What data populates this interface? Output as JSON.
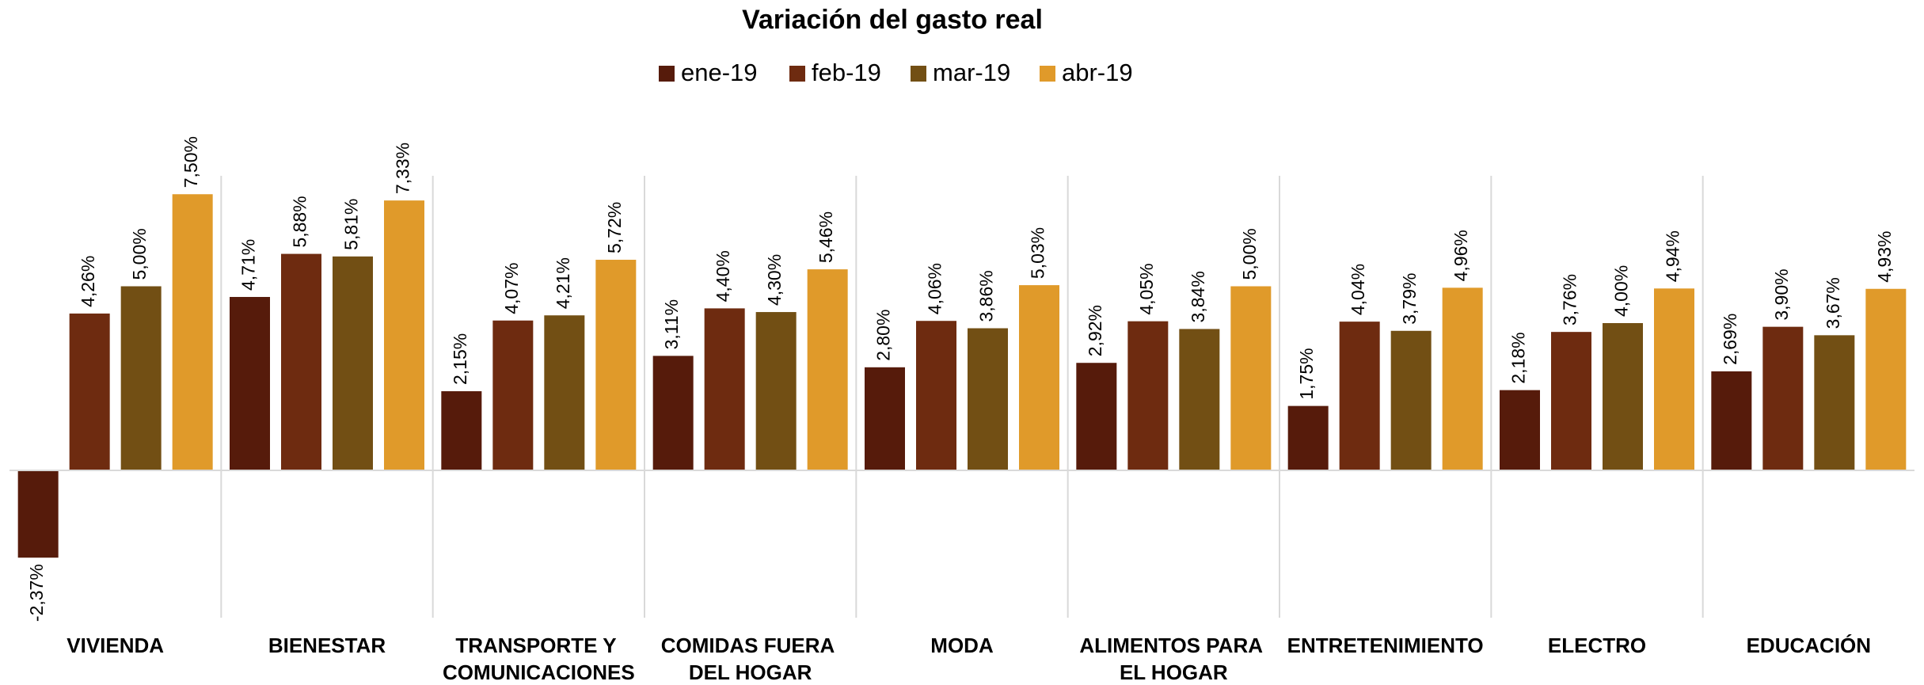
{
  "chart_data": {
    "type": "bar",
    "title": "Variación del gasto real",
    "categories": [
      "VIVIENDA",
      "BIENESTAR",
      "TRANSPORTE Y COMUNICACIONES",
      "COMIDAS FUERA DEL HOGAR",
      "MODA",
      "ALIMENTOS PARA EL HOGAR",
      "ENTRETENIMIENTO",
      "ELECTRO",
      "EDUCACIÓN"
    ],
    "series": [
      {
        "name": "ene-19",
        "color": "#561b0b",
        "values": [
          -2.37,
          4.71,
          2.15,
          3.11,
          2.8,
          2.92,
          1.75,
          2.18,
          2.69
        ],
        "value_labels": [
          "-2,37%",
          "4,71%",
          "2,15%",
          "3,11%",
          "2,80%",
          "2,92%",
          "1,75%",
          "2,18%",
          "2,69%"
        ]
      },
      {
        "name": "feb-19",
        "color": "#6e2b10",
        "values": [
          4.26,
          5.88,
          4.07,
          4.4,
          4.06,
          4.05,
          4.04,
          3.76,
          3.9
        ],
        "value_labels": [
          "4,26%",
          "5,88%",
          "4,07%",
          "4,40%",
          "4,06%",
          "4,05%",
          "4,04%",
          "3,76%",
          "3,90%"
        ]
      },
      {
        "name": "mar-19",
        "color": "#724f14",
        "values": [
          5.0,
          5.81,
          4.21,
          4.3,
          3.86,
          3.84,
          3.79,
          4.0,
          3.67
        ],
        "value_labels": [
          "5,00%",
          "5,81%",
          "4,21%",
          "4,30%",
          "3,86%",
          "3,84%",
          "3,79%",
          "4,00%",
          "3,67%"
        ]
      },
      {
        "name": "abr-19",
        "color": "#e09a2a",
        "values": [
          7.5,
          7.33,
          5.72,
          5.46,
          5.03,
          5.0,
          4.96,
          4.94,
          4.93
        ],
        "value_labels": [
          "7,50%",
          "7,33%",
          "5,72%",
          "5,46%",
          "5,03%",
          "5,00%",
          "4,96%",
          "4,94%",
          "4,93%"
        ]
      }
    ],
    "ylim": [
      -4,
      8
    ],
    "legend": "top"
  }
}
